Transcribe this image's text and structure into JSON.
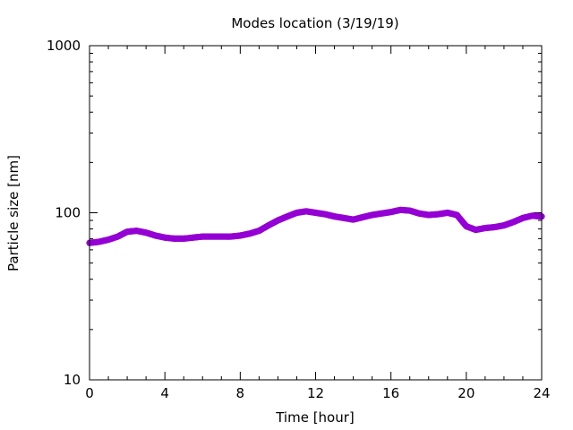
{
  "chart_data": {
    "type": "scatter",
    "title": "Modes location (3/19/19)",
    "xlabel": "Time [hour]",
    "ylabel": "Particle size [nm]",
    "xlim": [
      0,
      24
    ],
    "ylim": [
      10,
      1000
    ],
    "yscale": "log",
    "xticks": [
      0,
      4,
      8,
      12,
      16,
      20,
      24
    ],
    "xtick_labels": [
      "0",
      "4",
      "8",
      "12",
      "16",
      "20",
      "24"
    ],
    "yticks": [
      10,
      100,
      1000
    ],
    "ytick_labels": [
      "10",
      "100",
      "1000"
    ],
    "grid": false,
    "legend": "none",
    "marker_color": "#9400d3",
    "x": [
      0,
      0.5,
      1,
      1.5,
      2,
      2.5,
      3,
      3.5,
      4,
      4.5,
      5,
      5.5,
      6,
      6.5,
      7,
      7.5,
      8,
      8.5,
      9,
      9.5,
      10,
      10.5,
      11,
      11.5,
      12,
      12.5,
      13,
      13.5,
      14,
      14.5,
      15,
      15.5,
      16,
      16.5,
      17,
      17.5,
      18,
      18.5,
      19,
      19.5,
      20,
      20.5,
      21,
      21.5,
      22,
      22.5,
      23,
      23.5,
      24
    ],
    "y": [
      66,
      67,
      69,
      72,
      77,
      78,
      76,
      73,
      71,
      70,
      70,
      71,
      72,
      72,
      72,
      72,
      73,
      75,
      78,
      84,
      90,
      95,
      100,
      102,
      100,
      98,
      95,
      93,
      91,
      94,
      97,
      99,
      101,
      104,
      103,
      99,
      97,
      98,
      100,
      97,
      83,
      79,
      81,
      82,
      84,
      88,
      93,
      96,
      95
    ]
  }
}
